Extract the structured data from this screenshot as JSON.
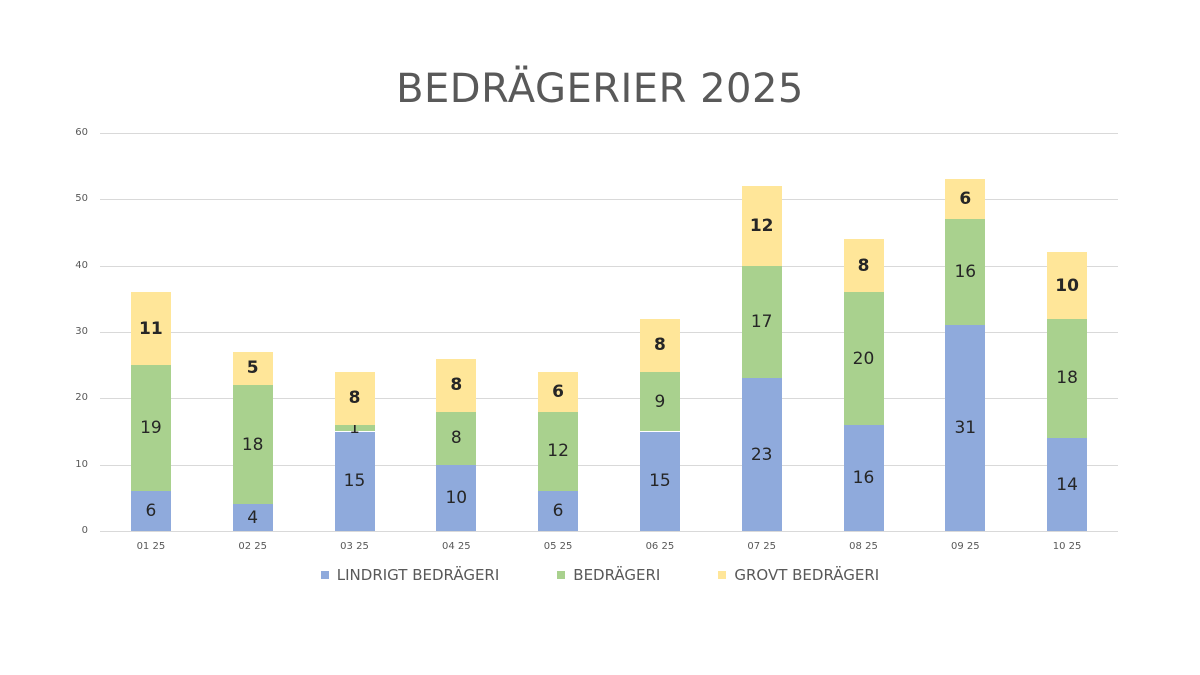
{
  "title": "BEDRÄGERIER 2025",
  "colors": {
    "lindrigt": "#8faadc",
    "bedrageri": "#a9d18e",
    "grovt": "#ffe699"
  },
  "legend": [
    {
      "label": "LINDRIGT BEDRÄGERI",
      "color": "#8faadc"
    },
    {
      "label": "BEDRÄGERI",
      "color": "#a9d18e"
    },
    {
      "label": "GROVT BEDRÄGERI",
      "color": "#ffe699"
    }
  ],
  "chart_data": {
    "type": "bar",
    "stacked": true,
    "title": "BEDRÄGERIER 2025",
    "xlabel": "",
    "ylabel": "",
    "ylim": [
      0,
      60
    ],
    "yticks": [
      0,
      10,
      20,
      30,
      40,
      50,
      60
    ],
    "grid": true,
    "legend_position": "bottom",
    "categories": [
      "01 25",
      "02 25",
      "03 25",
      "04 25",
      "05 25",
      "06 25",
      "07 25",
      "08 25",
      "09 25",
      "10 25"
    ],
    "series": [
      {
        "name": "LINDRIGT BEDRÄGERI",
        "color": "#8faadc",
        "values": [
          6,
          4,
          15,
          10,
          6,
          15,
          23,
          16,
          31,
          14
        ]
      },
      {
        "name": "BEDRÄGERI",
        "color": "#a9d18e",
        "values": [
          19,
          18,
          1,
          8,
          12,
          9,
          17,
          20,
          16,
          18
        ]
      },
      {
        "name": "GROVT BEDRÄGERI",
        "color": "#ffe699",
        "values": [
          11,
          5,
          8,
          8,
          6,
          8,
          12,
          8,
          6,
          10
        ]
      }
    ]
  }
}
